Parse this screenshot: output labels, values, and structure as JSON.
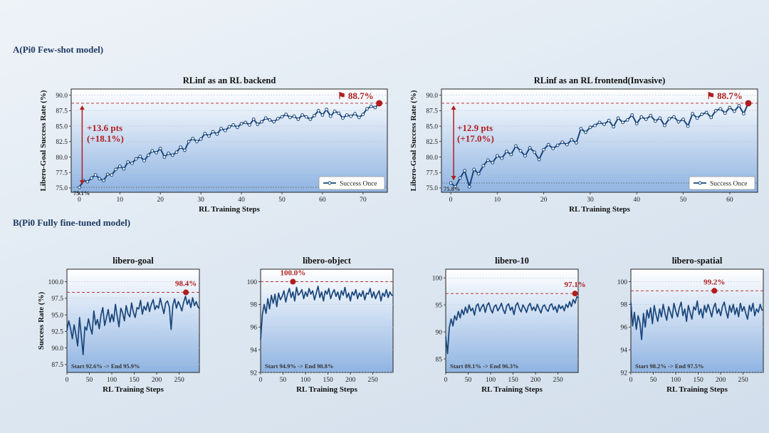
{
  "section_a": {
    "title": "A(Pi0 Few-shot model)"
  },
  "section_b": {
    "title": "B(Pi0 Fully fine-tuned model)"
  },
  "colors": {
    "line": "#18457a",
    "accent": "#b01e1e",
    "fill_top": "#ffffff",
    "fill_bottom": "#8fb4e2"
  },
  "chart_data": [
    {
      "type": "line",
      "title": "RLinf as an RL backend",
      "xlabel": "RL Training Steps",
      "ylabel": "Libero-Goal Success Rate (%)",
      "xlim": [
        -2,
        76
      ],
      "ylim": [
        74.3,
        91.0
      ],
      "xticks": [
        0,
        10,
        20,
        30,
        40,
        50,
        60,
        70
      ],
      "yticks": [
        75.0,
        77.5,
        80.0,
        82.5,
        85.0,
        87.5,
        90.0
      ],
      "legend": {
        "label": "Success Once",
        "position": "lower-right"
      },
      "series": [
        {
          "name": "Success Once",
          "x_start": 0,
          "values": [
            75.1,
            76.2,
            76.0,
            76.6,
            77.1,
            76.5,
            76.2,
            77.2,
            77.1,
            78.0,
            78.5,
            78.1,
            79.2,
            79.0,
            79.7,
            80.1,
            79.4,
            80.3,
            81.0,
            80.7,
            81.4,
            80.0,
            80.6,
            80.3,
            80.8,
            81.6,
            81.1,
            82.5,
            83.0,
            82.5,
            82.9,
            83.8,
            83.4,
            84.1,
            83.7,
            84.6,
            84.3,
            84.9,
            85.2,
            84.8,
            85.4,
            85.6,
            85.2,
            86.1,
            85.3,
            85.7,
            86.3,
            86.0,
            85.7,
            86.2,
            86.5,
            86.9,
            86.4,
            86.6,
            86.1,
            86.8,
            86.5,
            86.1,
            86.7,
            87.5,
            86.8,
            87.7,
            86.6,
            87.4,
            87.1,
            86.3,
            86.8,
            86.6,
            87.0,
            86.4,
            86.9,
            87.8,
            88.2,
            88.0,
            88.7
          ]
        }
      ],
      "start": {
        "x": 0,
        "y": 75.1,
        "label": "75.1%"
      },
      "best": {
        "x": 74,
        "y": 88.7,
        "label": "⚑ 88.7%"
      },
      "gain": {
        "label": "+13.6 pts\n(+18.1%)"
      }
    },
    {
      "type": "line",
      "title": "RLinf as an RL frontend(Invasive)",
      "xlabel": "RL Training Steps",
      "ylabel": "Libero-Goal Success Rate (%)",
      "xlim": [
        -2,
        66
      ],
      "ylim": [
        74.3,
        91.0
      ],
      "xticks": [
        0,
        10,
        20,
        30,
        40,
        50,
        60
      ],
      "yticks": [
        75.0,
        77.5,
        80.0,
        82.5,
        85.0,
        87.5,
        90.0
      ],
      "legend": {
        "label": "Success Once",
        "position": "lower-right"
      },
      "series": [
        {
          "name": "Success Once",
          "x_start": 0,
          "values": [
            75.8,
            75.2,
            76.6,
            77.8,
            75.2,
            78.0,
            77.3,
            78.6,
            79.5,
            79.1,
            80.2,
            79.8,
            80.9,
            80.4,
            81.8,
            81.0,
            80.2,
            81.5,
            80.8,
            79.6,
            81.2,
            82.0,
            81.4,
            81.9,
            82.4,
            82.0,
            82.8,
            82.3,
            84.6,
            84.0,
            84.8,
            85.1,
            85.6,
            85.3,
            85.9,
            84.9,
            86.3,
            85.6,
            86.0,
            86.8,
            85.4,
            86.5,
            86.1,
            86.7,
            85.8,
            86.3,
            85.1,
            86.2,
            86.5,
            85.7,
            86.1,
            85.0,
            87.0,
            86.3,
            86.9,
            87.2,
            86.4,
            87.5,
            87.8,
            87.1,
            88.0,
            87.4,
            88.3,
            87.0,
            88.7
          ]
        }
      ],
      "start": {
        "x": 0,
        "y": 75.8,
        "label": "75.8%"
      },
      "best": {
        "x": 64,
        "y": 88.7,
        "label": "⚑ 88.7%"
      },
      "gain": {
        "label": "+12.9 pts\n(+17.0%)"
      }
    },
    {
      "type": "line",
      "title": "libero-goal",
      "xlabel": "RL Training Steps",
      "ylabel": "Success Rate (%)",
      "xlim": [
        0,
        295
      ],
      "ylim": [
        86.3,
        101.9
      ],
      "xticks": [
        0,
        50,
        100,
        150,
        200,
        250
      ],
      "yticks": [
        87.5,
        90.0,
        92.5,
        95.0,
        97.5,
        100.0
      ],
      "series": [
        {
          "name": "libero-goal",
          "x_start": 0,
          "x_step": 4,
          "values": [
            92.6,
            94.1,
            93.0,
            91.4,
            93.5,
            92.0,
            90.3,
            94.6,
            91.8,
            89.0,
            93.2,
            92.7,
            94.4,
            93.1,
            92.1,
            95.6,
            93.5,
            94.3,
            92.9,
            95.0,
            96.1,
            93.4,
            94.6,
            95.8,
            93.9,
            95.1,
            94.0,
            96.6,
            94.8,
            93.2,
            96.0,
            95.3,
            94.1,
            96.4,
            95.2,
            94.7,
            96.8,
            95.4,
            94.6,
            96.1,
            95.9,
            97.2,
            95.1,
            96.3,
            95.7,
            96.9,
            95.5,
            96.6,
            97.3,
            95.8,
            96.4,
            96.0,
            97.5,
            96.3,
            95.2,
            96.8,
            97.1,
            96.2,
            92.8,
            96.5,
            97.4,
            96.0,
            97.0,
            96.4,
            95.6,
            96.9,
            97.8,
            96.6,
            97.3,
            96.1,
            97.6,
            96.4,
            97.0,
            96.2,
            95.9
          ]
        }
      ],
      "best": {
        "x": 265,
        "y": 98.4,
        "label": "98.4%"
      },
      "summary": "Start 92.6% -> End 95.9%"
    },
    {
      "type": "line",
      "title": "libero-object",
      "xlabel": "RL Training Steps",
      "ylabel": "",
      "xlim": [
        0,
        295
      ],
      "ylim": [
        92.0,
        101.1
      ],
      "xticks": [
        0,
        50,
        100,
        150,
        200,
        250
      ],
      "yticks": [
        92,
        94,
        96,
        98,
        100
      ],
      "series": [
        {
          "name": "libero-object",
          "x_start": 0,
          "x_step": 4,
          "values": [
            94.9,
            97.1,
            98.0,
            97.2,
            98.5,
            97.6,
            98.8,
            98.1,
            98.9,
            97.8,
            99.0,
            98.4,
            98.7,
            99.2,
            98.2,
            98.9,
            99.4,
            98.6,
            99.1,
            98.3,
            99.5,
            98.8,
            99.0,
            99.3,
            98.5,
            99.1,
            98.7,
            99.4,
            98.9,
            99.2,
            98.4,
            99.0,
            99.6,
            98.6,
            99.1,
            98.3,
            99.2,
            98.9,
            99.4,
            98.5,
            99.0,
            99.3,
            98.7,
            99.1,
            98.4,
            99.2,
            98.8,
            99.5,
            98.6,
            99.0,
            98.3,
            99.1,
            98.8,
            99.3,
            98.5,
            99.0,
            98.7,
            99.2,
            98.4,
            99.0,
            98.9,
            99.4,
            98.6,
            99.1,
            98.5,
            98.9,
            99.2,
            98.3,
            99.0,
            98.7,
            99.3,
            98.6,
            99.1,
            98.8,
            98.8
          ]
        }
      ],
      "best": {
        "x": 72,
        "y": 100.0,
        "label": "100.0%"
      },
      "summary": "Start 94.9% -> End 98.8%"
    },
    {
      "type": "line",
      "title": "libero-10",
      "xlabel": "RL Training Steps",
      "ylabel": "",
      "xlim": [
        0,
        295
      ],
      "ylim": [
        82.5,
        101.6
      ],
      "xticks": [
        0,
        50,
        100,
        150,
        200,
        250
      ],
      "yticks": [
        85,
        90,
        95,
        100
      ],
      "series": [
        {
          "name": "libero-10",
          "x_start": 0,
          "x_step": 4,
          "values": [
            89.1,
            86.0,
            90.8,
            92.4,
            91.1,
            93.0,
            92.2,
            93.8,
            92.6,
            94.1,
            93.2,
            94.6,
            93.5,
            95.0,
            93.9,
            94.4,
            93.1,
            94.8,
            95.2,
            93.8,
            94.6,
            95.1,
            93.6,
            94.9,
            95.4,
            94.2,
            93.5,
            94.7,
            95.0,
            93.9,
            94.5,
            95.3,
            94.1,
            93.4,
            94.8,
            95.2,
            94.0,
            94.6,
            93.2,
            94.9,
            95.4,
            94.3,
            93.7,
            95.0,
            94.4,
            93.6,
            94.8,
            95.3,
            94.0,
            94.6,
            93.9,
            95.1,
            94.3,
            93.5,
            94.7,
            95.0,
            94.2,
            93.8,
            94.9,
            95.2,
            94.1,
            94.7,
            93.6,
            95.0,
            94.3,
            94.8,
            93.9,
            95.1,
            94.5,
            95.6,
            94.7,
            96.0,
            95.3,
            96.5,
            96.3
          ]
        }
      ],
      "best": {
        "x": 288,
        "y": 97.1,
        "label": "97.1%"
      },
      "summary": "Start 89.1% -> End 96.3%"
    },
    {
      "type": "line",
      "title": "libero-spatial",
      "xlabel": "RL Training Steps",
      "ylabel": "",
      "xlim": [
        0,
        295
      ],
      "ylim": [
        92.0,
        101.1
      ],
      "xticks": [
        0,
        50,
        100,
        150,
        200,
        250
      ],
      "yticks": [
        92,
        94,
        96,
        98,
        100
      ],
      "series": [
        {
          "name": "libero-spatial",
          "x_start": 0,
          "x_step": 4,
          "values": [
            98.2,
            96.1,
            97.3,
            95.8,
            97.0,
            96.4,
            94.9,
            97.2,
            96.0,
            97.5,
            96.8,
            97.7,
            96.3,
            97.9,
            97.1,
            96.5,
            97.6,
            96.9,
            98.0,
            97.2,
            96.6,
            97.8,
            97.3,
            96.8,
            98.1,
            97.4,
            96.9,
            97.7,
            98.2,
            97.0,
            97.6,
            96.5,
            97.9,
            97.3,
            96.7,
            97.8,
            97.5,
            98.3,
            97.1,
            97.6,
            96.8,
            97.9,
            97.3,
            98.0,
            97.5,
            96.9,
            97.7,
            98.1,
            97.2,
            97.6,
            97.0,
            97.8,
            98.2,
            97.4,
            96.8,
            97.9,
            97.3,
            98.0,
            97.1,
            97.7,
            96.9,
            98.1,
            97.4,
            97.8,
            97.2,
            96.7,
            97.9,
            97.4,
            98.1,
            97.0,
            97.6,
            97.3,
            98.0,
            97.5,
            97.5
          ]
        }
      ],
      "best": {
        "x": 186,
        "y": 99.2,
        "label": "99.2%"
      },
      "summary": "Start 98.2% -> End 97.5%"
    }
  ]
}
